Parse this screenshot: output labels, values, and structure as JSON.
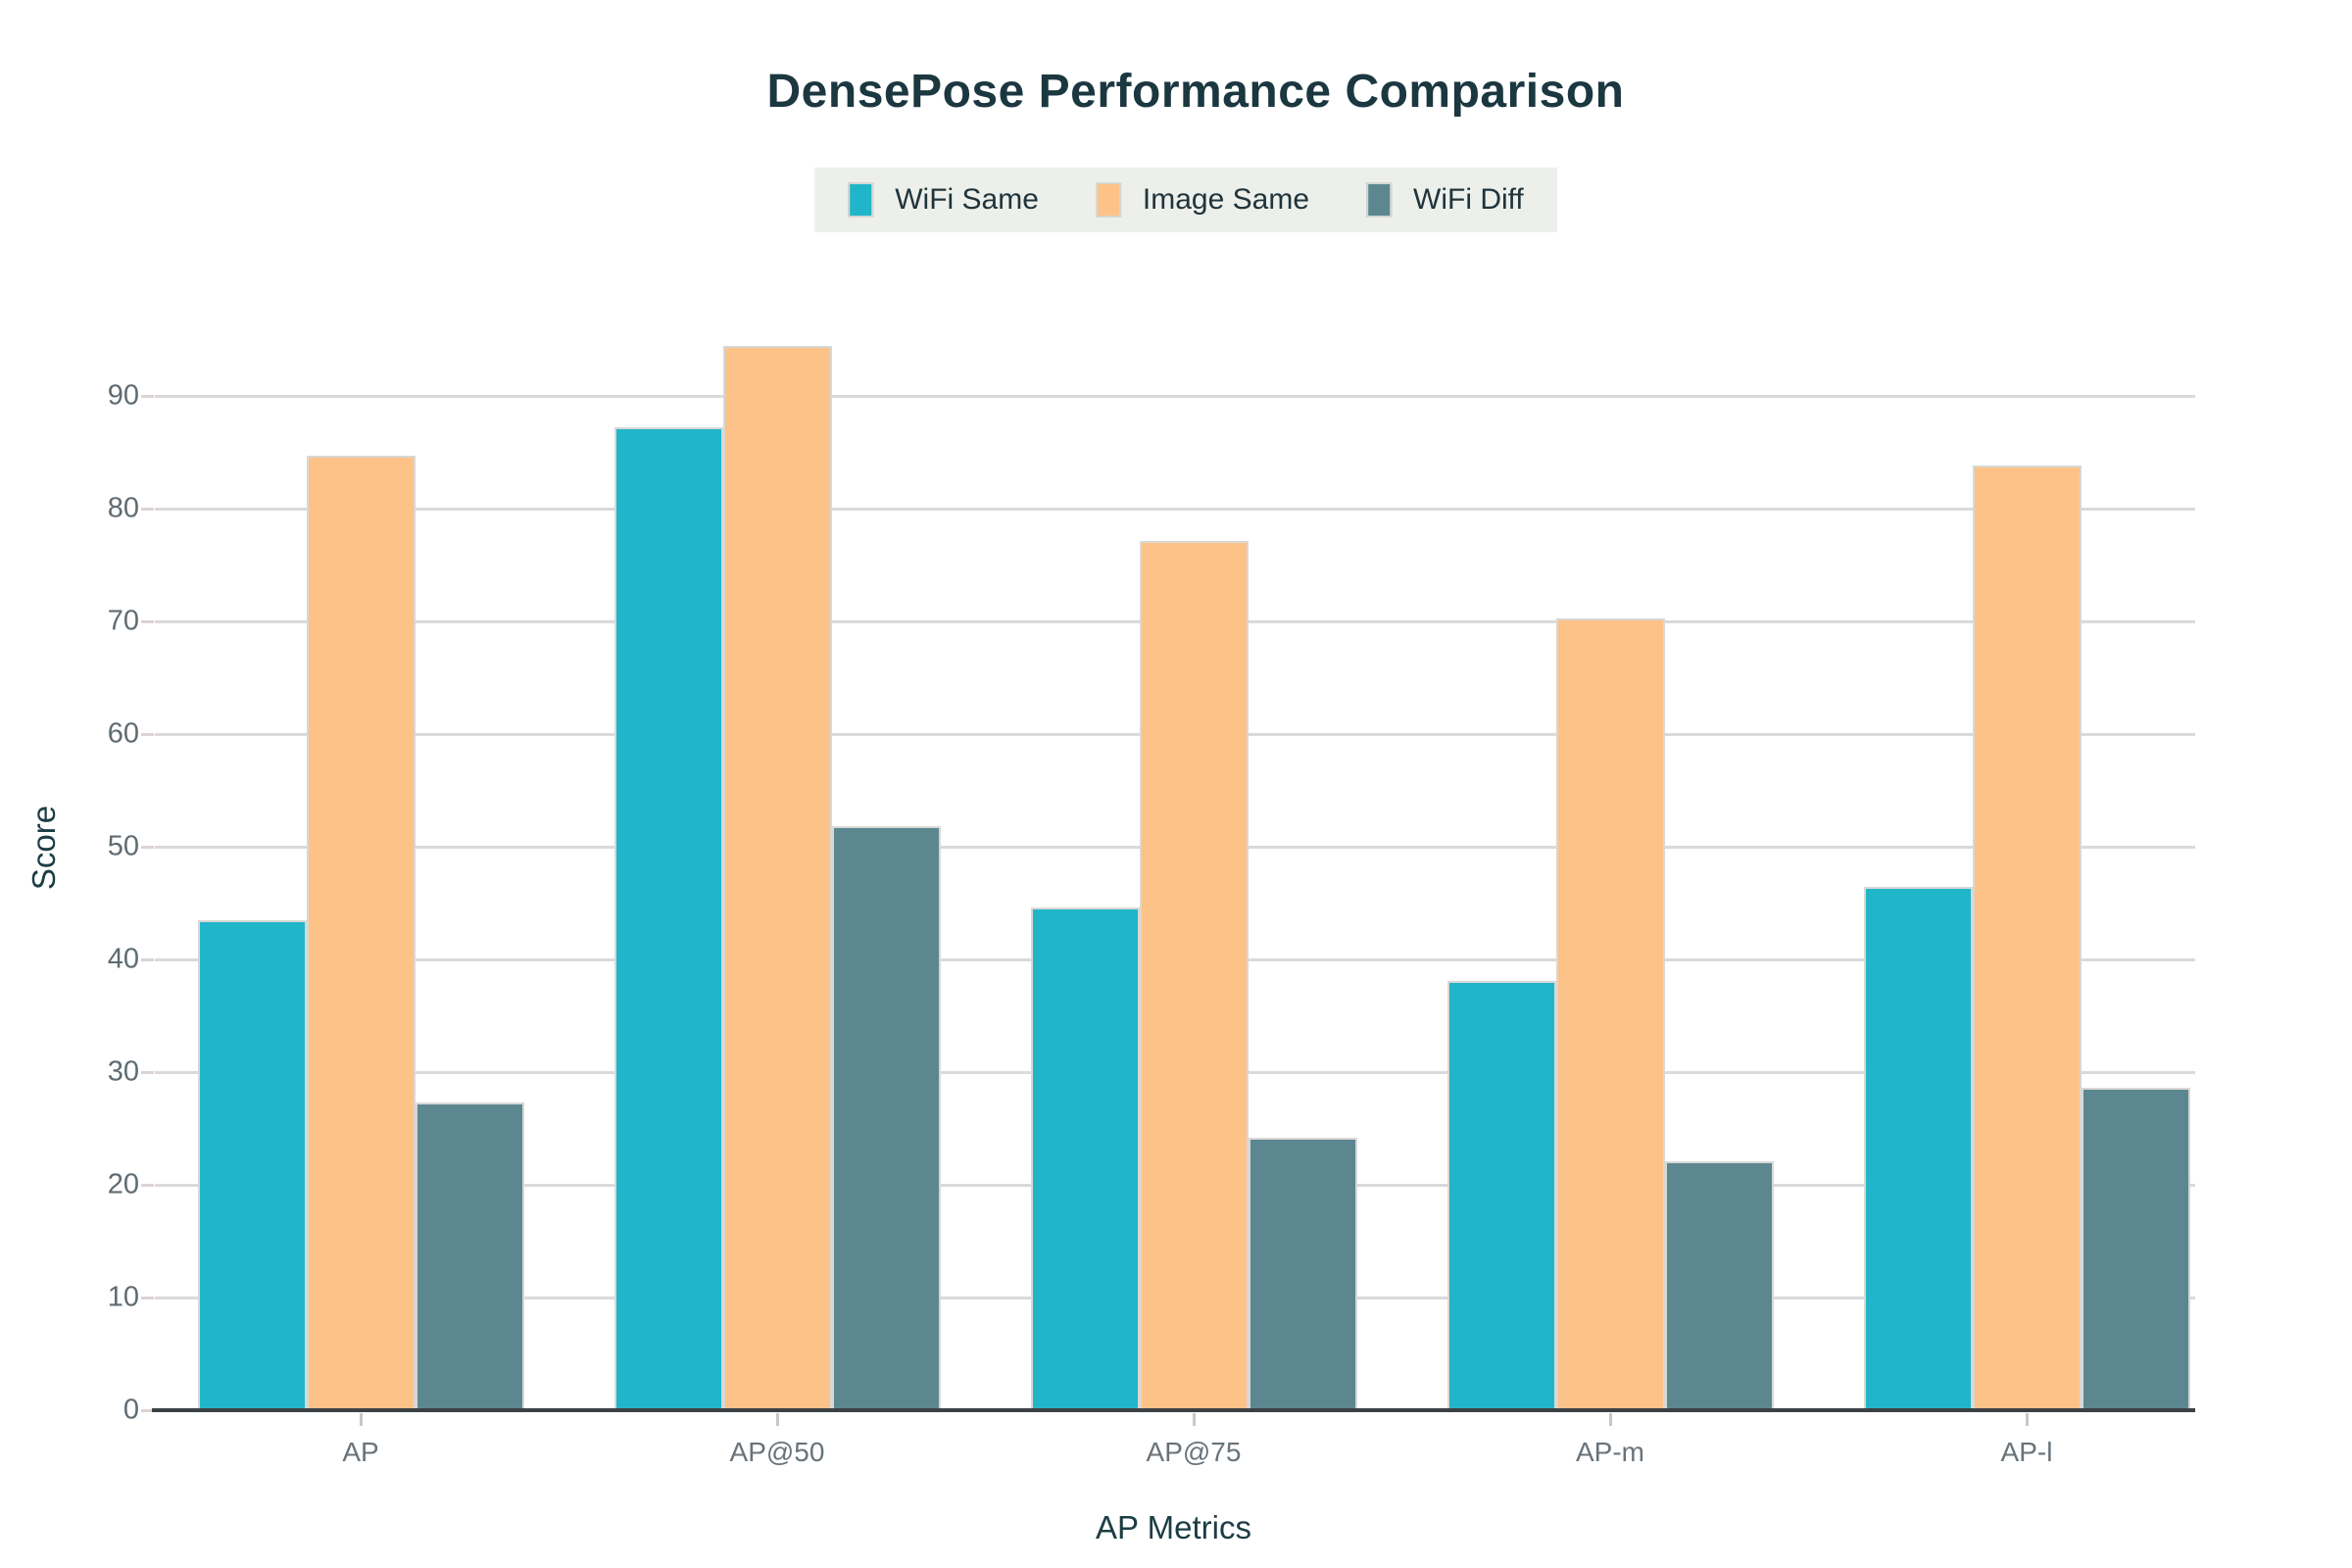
{
  "title": "DensePose Performance Comparison",
  "colors": {
    "background": "#ffffff",
    "title_text": "#1b3740",
    "axis_title_text": "#1d3d45",
    "tick_label_text": "#5f6b72",
    "gridline": "#dadadd",
    "axis_line": "#3c4145",
    "legend_background": "#edf0ea",
    "series_wifi_same": "#21b5c9",
    "series_image_same": "#fdc288",
    "series_wifi_diff": "#5c8790"
  },
  "chart_data": {
    "type": "bar",
    "title": "DensePose Performance Comparison",
    "xlabel": "AP Metrics",
    "ylabel": "Score",
    "categories": [
      "AP",
      "AP@50",
      "AP@75",
      "AP-m",
      "AP-l"
    ],
    "series": [
      {
        "name": "WiFi Same",
        "color": "#21b5c9",
        "values": [
          43.5,
          87.2,
          44.6,
          38.1,
          46.4
        ]
      },
      {
        "name": "Image Same",
        "color": "#fdc288",
        "values": [
          84.7,
          94.4,
          77.1,
          70.3,
          83.8
        ]
      },
      {
        "name": "WiFi Diff",
        "color": "#5c8790",
        "values": [
          27.3,
          51.8,
          24.2,
          22.1,
          28.6
        ]
      }
    ],
    "ylim": [
      0,
      97.5
    ],
    "yticks": [
      0,
      10,
      20,
      30,
      40,
      50,
      60,
      70,
      80,
      90
    ],
    "grid": "horizontal",
    "legend_position": "top-center"
  }
}
